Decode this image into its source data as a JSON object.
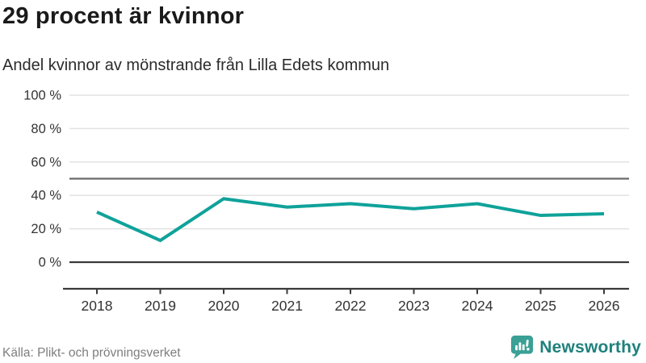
{
  "title": "29 procent är kvinnor",
  "subtitle": "Andel kvinnor av mönstrande från Lilla Edets kommun",
  "source": "Källa: Plikt- och prövningsverket",
  "branding": {
    "name": "Newsworthy",
    "icon": "newsworthy-speech-bubble-chart-icon",
    "icon_color": "#3aa096",
    "text_color": "#1f817c"
  },
  "colors": {
    "line": "#0fa29a",
    "grid": "#e2e2e2",
    "refline": "#6a6a6a",
    "axis": "#3a3a3a",
    "tick_label": "#333333",
    "title_text": "#1a1a1a",
    "muted_text": "#7e7e7e"
  },
  "chart_data": {
    "type": "line",
    "title": "29 procent är kvinnor",
    "subtitle": "Andel kvinnor av mönstrande från Lilla Edets kommun",
    "x": [
      2018,
      2019,
      2020,
      2021,
      2022,
      2023,
      2024,
      2025,
      2026
    ],
    "series": [
      {
        "name": "Andel kvinnor av mönstrande",
        "values": [
          30,
          13,
          38,
          33,
          35,
          32,
          35,
          28,
          29
        ]
      }
    ],
    "xlabel": "",
    "ylabel": "",
    "ylim": [
      0,
      100
    ],
    "yticks": [
      0,
      20,
      40,
      60,
      80,
      100
    ],
    "ytick_suffix": " %",
    "reference_line": 50,
    "grid": true,
    "legend": "none"
  }
}
